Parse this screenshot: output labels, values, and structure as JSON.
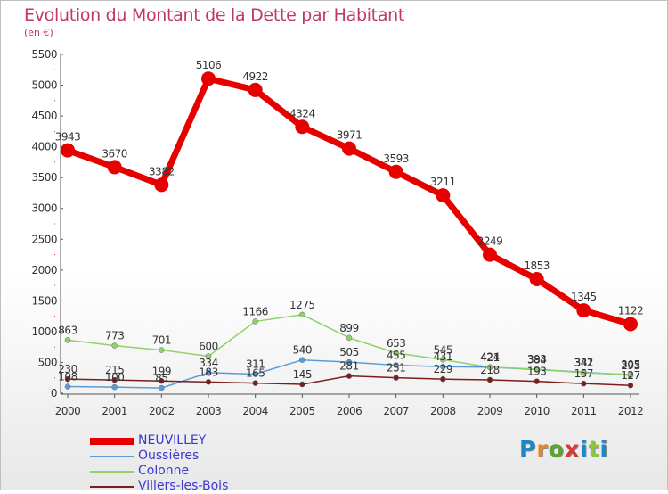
{
  "title": "Evolution du Montant de la Dette par Habitant",
  "subtitle": "(en €)",
  "logo": {
    "text": "Proxiti",
    "colors": [
      "#1e88c7",
      "#e2892c",
      "#5aa632",
      "#d63a3a",
      "#1e88c7",
      "#8cc63f",
      "#1e88c7"
    ]
  },
  "colors": {
    "axis": "#555555",
    "grid_tick": "#cc3366",
    "label": "#333333"
  },
  "chart_data": {
    "type": "line",
    "title": "Evolution du Montant de la Dette par Habitant",
    "subtitle": "(en €)",
    "x": [
      "2000",
      "2001",
      "2002",
      "2003",
      "2004",
      "2005",
      "2006",
      "2007",
      "2008",
      "2009",
      "2010",
      "2011",
      "2012"
    ],
    "ylim": [
      0,
      5500
    ],
    "yticks": [
      0,
      500,
      1000,
      1500,
      2000,
      2500,
      3000,
      3500,
      4000,
      4500,
      5000,
      5500
    ],
    "grid": false,
    "legend_position": "bottom-left",
    "series": [
      {
        "name": "NEUVILLEY",
        "color": "#e60000",
        "width": 7,
        "marker": 8,
        "values": [
          3943,
          3670,
          3382,
          5106,
          4922,
          4324,
          3971,
          3593,
          3211,
          2249,
          1853,
          1345,
          1122
        ],
        "labels": [
          "3943",
          "3670",
          "3382",
          "5106",
          "4922",
          "4324",
          "3971",
          "3593",
          "3211",
          "2249",
          "1853",
          "1345",
          "1122"
        ]
      },
      {
        "name": "Oussières",
        "color": "#5b9bd5",
        "width": 1.5,
        "marker": 3,
        "values": [
          108,
          100,
          85,
          334,
          311,
          540,
          505,
          455,
          431,
          424,
          384,
          342,
          293
        ],
        "labels": [
          "108",
          "100",
          "85",
          "334",
          "311",
          "540",
          "505",
          "455",
          "431",
          "424",
          "384",
          "342",
          "293"
        ]
      },
      {
        "name": "Colonne",
        "color": "#8fd16a",
        "width": 1.5,
        "marker": 3,
        "values": [
          863,
          773,
          701,
          600,
          1166,
          1275,
          899,
          653,
          545,
          421,
          393,
          331,
          305
        ],
        "labels": [
          "863",
          "773",
          "701",
          "600",
          "1166",
          "1275",
          "899",
          "653",
          "545",
          "421",
          "393",
          "331",
          "305"
        ]
      },
      {
        "name": "Villers-les-Bois",
        "color": "#7b1e1e",
        "width": 1.5,
        "marker": 3,
        "values": [
          230,
          215,
          199,
          183,
          165,
          145,
          281,
          251,
          229,
          218,
          193,
          157,
          127
        ],
        "labels": [
          "230",
          "215",
          "199",
          "183",
          "165",
          "145",
          "281",
          "251",
          "229",
          "218",
          "193",
          "157",
          "127"
        ]
      }
    ]
  }
}
